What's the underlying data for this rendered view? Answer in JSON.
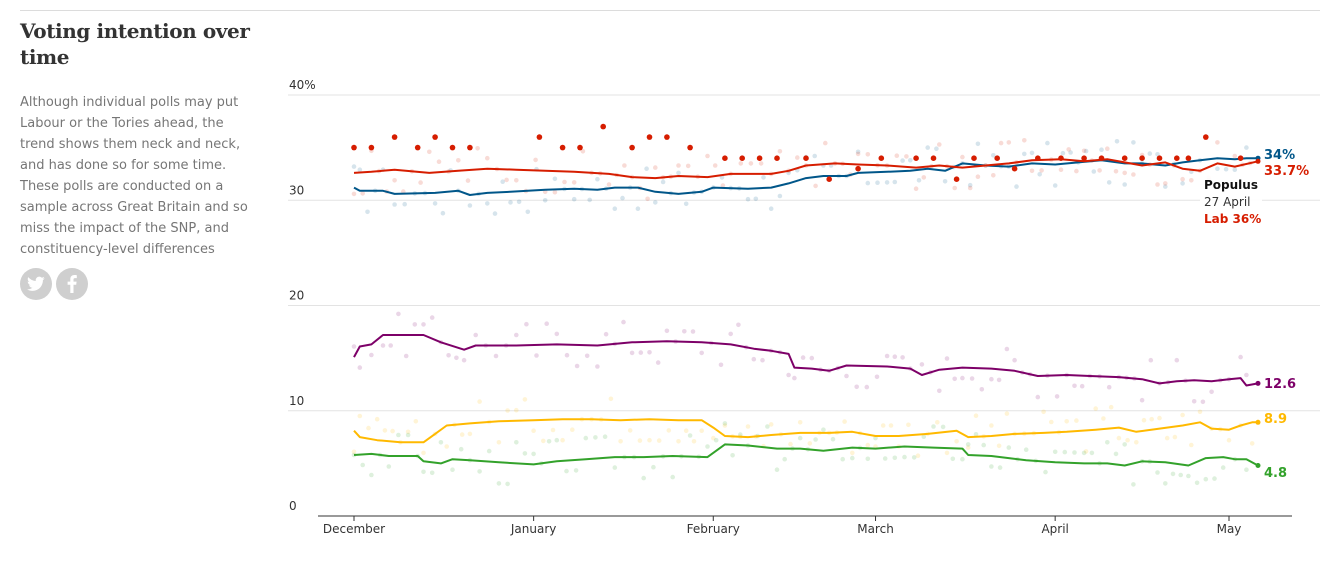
{
  "header": {
    "title": "Voting intention over time",
    "description": "Although individual polls may put Labour or the Tories ahead, the trend shows them neck and neck, and has done so for some time. These polls are conducted on a sample across Great Britain and so miss the impact of the SNP, and constituency-level differences"
  },
  "share": {
    "twitter_icon": "twitter-icon",
    "facebook_icon": "facebook-icon"
  },
  "chart_data": {
    "type": "line",
    "title": "Voting intention over time",
    "ylim": [
      0,
      40
    ],
    "y_ticks": [
      {
        "value": 0,
        "label": "0"
      },
      {
        "value": 10,
        "label": "10"
      },
      {
        "value": 20,
        "label": "20"
      },
      {
        "value": 30,
        "label": "30"
      },
      {
        "value": 40,
        "label": "40%"
      }
    ],
    "xlim": [
      "2014-11-25",
      "2015-05-07"
    ],
    "x_ticks": [
      {
        "date": "2014-12-01",
        "label": "December"
      },
      {
        "date": "2015-01-01",
        "label": "January"
      },
      {
        "date": "2015-02-01",
        "label": "February"
      },
      {
        "date": "2015-03-01",
        "label": "March"
      },
      {
        "date": "2015-04-01",
        "label": "April"
      },
      {
        "date": "2015-05-01",
        "label": "May"
      }
    ],
    "grid": true,
    "series": [
      {
        "key": "con",
        "color": "#005689",
        "end_label": "34%",
        "end_value": 34,
        "trend": [
          [
            "2014-12-01",
            31.2
          ],
          [
            "2014-12-02",
            30.9
          ],
          [
            "2014-12-06",
            30.9
          ],
          [
            "2014-12-08",
            30.6
          ],
          [
            "2014-12-15",
            30.7
          ],
          [
            "2014-12-19",
            30.9
          ],
          [
            "2014-12-21",
            30.5
          ],
          [
            "2014-12-24",
            30.7
          ],
          [
            "2014-12-28",
            30.8
          ],
          [
            "2015-01-03",
            31.0
          ],
          [
            "2015-01-08",
            31.1
          ],
          [
            "2015-01-12",
            31.0
          ],
          [
            "2015-01-15",
            31.2
          ],
          [
            "2015-01-19",
            31.2
          ],
          [
            "2015-01-22",
            30.8
          ],
          [
            "2015-01-26",
            30.6
          ],
          [
            "2015-01-30",
            30.8
          ],
          [
            "2015-02-01",
            31.2
          ],
          [
            "2015-02-07",
            31.1
          ],
          [
            "2015-02-11",
            31.2
          ],
          [
            "2015-02-14",
            31.6
          ],
          [
            "2015-02-17",
            32.1
          ],
          [
            "2015-02-20",
            32.3
          ],
          [
            "2015-02-24",
            32.3
          ],
          [
            "2015-02-26",
            32.6
          ],
          [
            "2015-03-03",
            32.7
          ],
          [
            "2015-03-07",
            32.8
          ],
          [
            "2015-03-10",
            33.0
          ],
          [
            "2015-03-13",
            32.8
          ],
          [
            "2015-03-16",
            33.5
          ],
          [
            "2015-03-20",
            33.3
          ],
          [
            "2015-03-24",
            33.2
          ],
          [
            "2015-03-28",
            33.5
          ],
          [
            "2015-04-01",
            33.4
          ],
          [
            "2015-04-05",
            33.6
          ],
          [
            "2015-04-09",
            33.8
          ],
          [
            "2015-04-13",
            33.5
          ],
          [
            "2015-04-16",
            33.5
          ],
          [
            "2015-04-20",
            33.3
          ],
          [
            "2015-04-23",
            33.6
          ],
          [
            "2015-04-26",
            33.8
          ],
          [
            "2015-04-29",
            34.0
          ],
          [
            "2015-05-02",
            33.9
          ],
          [
            "2015-05-04",
            34.0
          ],
          [
            "2015-05-06",
            34.0
          ]
        ]
      },
      {
        "key": "lab",
        "color": "#d61d00",
        "end_label": "33.7%",
        "end_value": 33.7,
        "trend": [
          [
            "2014-12-01",
            32.6
          ],
          [
            "2014-12-04",
            32.7
          ],
          [
            "2014-12-08",
            32.9
          ],
          [
            "2014-12-14",
            32.6
          ],
          [
            "2014-12-19",
            32.8
          ],
          [
            "2014-12-24",
            33.0
          ],
          [
            "2014-12-29",
            32.9
          ],
          [
            "2015-01-03",
            32.8
          ],
          [
            "2015-01-08",
            32.7
          ],
          [
            "2015-01-14",
            32.5
          ],
          [
            "2015-01-18",
            32.2
          ],
          [
            "2015-01-22",
            32.1
          ],
          [
            "2015-01-26",
            32.3
          ],
          [
            "2015-01-31",
            32.2
          ],
          [
            "2015-02-04",
            32.5
          ],
          [
            "2015-02-11",
            32.5
          ],
          [
            "2015-02-14",
            32.8
          ],
          [
            "2015-02-17",
            33.3
          ],
          [
            "2015-02-22",
            33.5
          ],
          [
            "2015-02-26",
            33.4
          ],
          [
            "2015-03-03",
            33.3
          ],
          [
            "2015-03-08",
            33.1
          ],
          [
            "2015-03-12",
            33.3
          ],
          [
            "2015-03-16",
            33.1
          ],
          [
            "2015-03-20",
            33.3
          ],
          [
            "2015-03-24",
            33.5
          ],
          [
            "2015-03-28",
            33.8
          ],
          [
            "2015-04-02",
            33.9
          ],
          [
            "2015-04-06",
            33.7
          ],
          [
            "2015-04-10",
            33.9
          ],
          [
            "2015-04-13",
            33.6
          ],
          [
            "2015-04-16",
            33.3
          ],
          [
            "2015-04-20",
            33.6
          ],
          [
            "2015-04-23",
            33.0
          ],
          [
            "2015-04-26",
            32.8
          ],
          [
            "2015-04-29",
            33.5
          ],
          [
            "2015-05-02",
            33.2
          ],
          [
            "2015-05-06",
            33.7
          ]
        ]
      },
      {
        "key": "ukip",
        "color": "#7d0068",
        "end_label": "12.6",
        "end_value": 12.6,
        "trend": [
          [
            "2014-12-01",
            15.1
          ],
          [
            "2014-12-02",
            16.1
          ],
          [
            "2014-12-04",
            16.3
          ],
          [
            "2014-12-06",
            17.2
          ],
          [
            "2014-12-10",
            17.2
          ],
          [
            "2014-12-13",
            17.2
          ],
          [
            "2014-12-16",
            16.5
          ],
          [
            "2014-12-20",
            15.8
          ],
          [
            "2014-12-22",
            16.2
          ],
          [
            "2014-12-29",
            16.2
          ],
          [
            "2015-01-05",
            16.3
          ],
          [
            "2015-01-12",
            16.2
          ],
          [
            "2015-01-18",
            16.5
          ],
          [
            "2015-01-24",
            16.6
          ],
          [
            "2015-01-30",
            16.5
          ],
          [
            "2015-02-04",
            16.3
          ],
          [
            "2015-02-08",
            15.9
          ],
          [
            "2015-02-11",
            15.7
          ],
          [
            "2015-02-14",
            15.4
          ],
          [
            "2015-02-15",
            14.1
          ],
          [
            "2015-02-18",
            14.0
          ],
          [
            "2015-02-21",
            13.8
          ],
          [
            "2015-02-24",
            14.3
          ],
          [
            "2015-03-03",
            14.2
          ],
          [
            "2015-03-07",
            14.0
          ],
          [
            "2015-03-09",
            13.4
          ],
          [
            "2015-03-12",
            13.9
          ],
          [
            "2015-03-16",
            14.1
          ],
          [
            "2015-03-21",
            14.0
          ],
          [
            "2015-03-25",
            13.8
          ],
          [
            "2015-03-29",
            13.3
          ],
          [
            "2015-04-03",
            13.4
          ],
          [
            "2015-04-07",
            13.3
          ],
          [
            "2015-04-12",
            13.2
          ],
          [
            "2015-04-16",
            13.0
          ],
          [
            "2015-04-19",
            12.6
          ],
          [
            "2015-04-22",
            12.8
          ],
          [
            "2015-04-25",
            12.9
          ],
          [
            "2015-04-28",
            12.8
          ],
          [
            "2015-05-01",
            13.0
          ],
          [
            "2015-05-03",
            13.1
          ],
          [
            "2015-05-04",
            12.4
          ],
          [
            "2015-05-06",
            12.6
          ]
        ]
      },
      {
        "key": "ld",
        "color": "#ffb900",
        "end_label": "8.9",
        "end_value": 8.9,
        "trend": [
          [
            "2014-12-01",
            8.1
          ],
          [
            "2014-12-02",
            7.5
          ],
          [
            "2014-12-05",
            7.2
          ],
          [
            "2014-12-09",
            7.0
          ],
          [
            "2014-12-13",
            7.0
          ],
          [
            "2014-12-15",
            7.8
          ],
          [
            "2014-12-17",
            8.6
          ],
          [
            "2014-12-21",
            8.8
          ],
          [
            "2014-12-26",
            9.0
          ],
          [
            "2015-01-01",
            9.1
          ],
          [
            "2015-01-06",
            9.2
          ],
          [
            "2015-01-11",
            9.2
          ],
          [
            "2015-01-16",
            9.1
          ],
          [
            "2015-01-21",
            9.2
          ],
          [
            "2015-01-26",
            9.1
          ],
          [
            "2015-01-30",
            9.1
          ],
          [
            "2015-02-01",
            8.4
          ],
          [
            "2015-02-03",
            7.6
          ],
          [
            "2015-02-07",
            7.5
          ],
          [
            "2015-02-11",
            7.7
          ],
          [
            "2015-02-16",
            7.9
          ],
          [
            "2015-02-21",
            7.9
          ],
          [
            "2015-02-25",
            8.0
          ],
          [
            "2015-03-01",
            7.6
          ],
          [
            "2015-03-05",
            7.6
          ],
          [
            "2015-03-10",
            7.8
          ],
          [
            "2015-03-15",
            8.1
          ],
          [
            "2015-03-17",
            7.5
          ],
          [
            "2015-03-21",
            7.6
          ],
          [
            "2015-03-25",
            7.8
          ],
          [
            "2015-03-30",
            7.9
          ],
          [
            "2015-04-03",
            8.0
          ],
          [
            "2015-04-08",
            8.2
          ],
          [
            "2015-04-12",
            8.4
          ],
          [
            "2015-04-15",
            8.0
          ],
          [
            "2015-04-19",
            8.3
          ],
          [
            "2015-04-23",
            8.6
          ],
          [
            "2015-04-26",
            8.9
          ],
          [
            "2015-04-28",
            8.3
          ],
          [
            "2015-05-01",
            8.2
          ],
          [
            "2015-05-03",
            8.6
          ],
          [
            "2015-05-05",
            8.9
          ],
          [
            "2015-05-06",
            8.9
          ]
        ]
      },
      {
        "key": "green",
        "color": "#33a22b",
        "end_label": "4.8",
        "end_value": 4.8,
        "trend": [
          [
            "2014-12-01",
            5.8
          ],
          [
            "2014-12-04",
            5.9
          ],
          [
            "2014-12-07",
            5.7
          ],
          [
            "2014-12-12",
            5.7
          ],
          [
            "2014-12-13",
            5.2
          ],
          [
            "2014-12-16",
            5.0
          ],
          [
            "2014-12-18",
            5.4
          ],
          [
            "2014-12-21",
            5.3
          ],
          [
            "2014-12-26",
            5.1
          ],
          [
            "2015-01-01",
            4.9
          ],
          [
            "2015-01-05",
            5.2
          ],
          [
            "2015-01-10",
            5.4
          ],
          [
            "2015-01-15",
            5.6
          ],
          [
            "2015-01-20",
            5.6
          ],
          [
            "2015-01-25",
            5.7
          ],
          [
            "2015-01-31",
            5.6
          ],
          [
            "2015-02-03",
            6.8
          ],
          [
            "2015-02-07",
            6.7
          ],
          [
            "2015-02-12",
            6.4
          ],
          [
            "2015-02-16",
            6.4
          ],
          [
            "2015-02-20",
            6.2
          ],
          [
            "2015-02-25",
            6.5
          ],
          [
            "2015-03-01",
            6.4
          ],
          [
            "2015-03-06",
            6.6
          ],
          [
            "2015-03-11",
            6.5
          ],
          [
            "2015-03-16",
            6.4
          ],
          [
            "2015-03-17",
            5.8
          ],
          [
            "2015-03-21",
            5.7
          ],
          [
            "2015-03-24",
            5.5
          ],
          [
            "2015-03-27",
            5.3
          ],
          [
            "2015-04-01",
            5.1
          ],
          [
            "2015-04-06",
            5.0
          ],
          [
            "2015-04-10",
            5.0
          ],
          [
            "2015-04-13",
            4.8
          ],
          [
            "2015-04-16",
            5.2
          ],
          [
            "2015-04-20",
            5.1
          ],
          [
            "2015-04-24",
            4.8
          ],
          [
            "2015-04-27",
            5.5
          ],
          [
            "2015-04-30",
            5.6
          ],
          [
            "2015-05-02",
            5.4
          ],
          [
            "2015-05-04",
            5.4
          ],
          [
            "2015-05-06",
            4.8
          ]
        ]
      }
    ],
    "highlighted_polls": {
      "series": "lab",
      "points": [
        [
          "2014-12-01",
          35
        ],
        [
          "2014-12-04",
          35
        ],
        [
          "2014-12-08",
          36
        ],
        [
          "2014-12-12",
          35
        ],
        [
          "2014-12-15",
          36
        ],
        [
          "2014-12-18",
          35
        ],
        [
          "2014-12-21",
          35
        ],
        [
          "2015-01-02",
          36
        ],
        [
          "2015-01-06",
          35
        ],
        [
          "2015-01-09",
          35
        ],
        [
          "2015-01-13",
          37
        ],
        [
          "2015-01-18",
          35
        ],
        [
          "2015-01-21",
          36
        ],
        [
          "2015-01-24",
          36
        ],
        [
          "2015-01-28",
          35
        ],
        [
          "2015-02-03",
          34
        ],
        [
          "2015-02-06",
          34
        ],
        [
          "2015-02-09",
          34
        ],
        [
          "2015-02-12",
          34
        ],
        [
          "2015-02-17",
          34
        ],
        [
          "2015-02-21",
          32
        ],
        [
          "2015-02-26",
          33
        ],
        [
          "2015-03-02",
          34
        ],
        [
          "2015-03-08",
          34
        ],
        [
          "2015-03-11",
          34
        ],
        [
          "2015-03-15",
          32
        ],
        [
          "2015-03-18",
          34
        ],
        [
          "2015-03-22",
          34
        ],
        [
          "2015-03-25",
          33
        ],
        [
          "2015-03-29",
          34
        ],
        [
          "2015-04-02",
          34
        ],
        [
          "2015-04-06",
          34
        ],
        [
          "2015-04-09",
          34
        ],
        [
          "2015-04-13",
          34
        ],
        [
          "2015-04-16",
          34
        ],
        [
          "2015-04-19",
          34
        ],
        [
          "2015-04-22",
          34
        ],
        [
          "2015-04-24",
          34
        ],
        [
          "2015-04-27",
          36
        ],
        [
          "2015-05-03",
          34
        ]
      ]
    },
    "tooltip": {
      "pollster": "Populus",
      "date": "27 April",
      "value": "Lab 36%",
      "date_iso": "2015-04-27",
      "series": "lab"
    }
  }
}
